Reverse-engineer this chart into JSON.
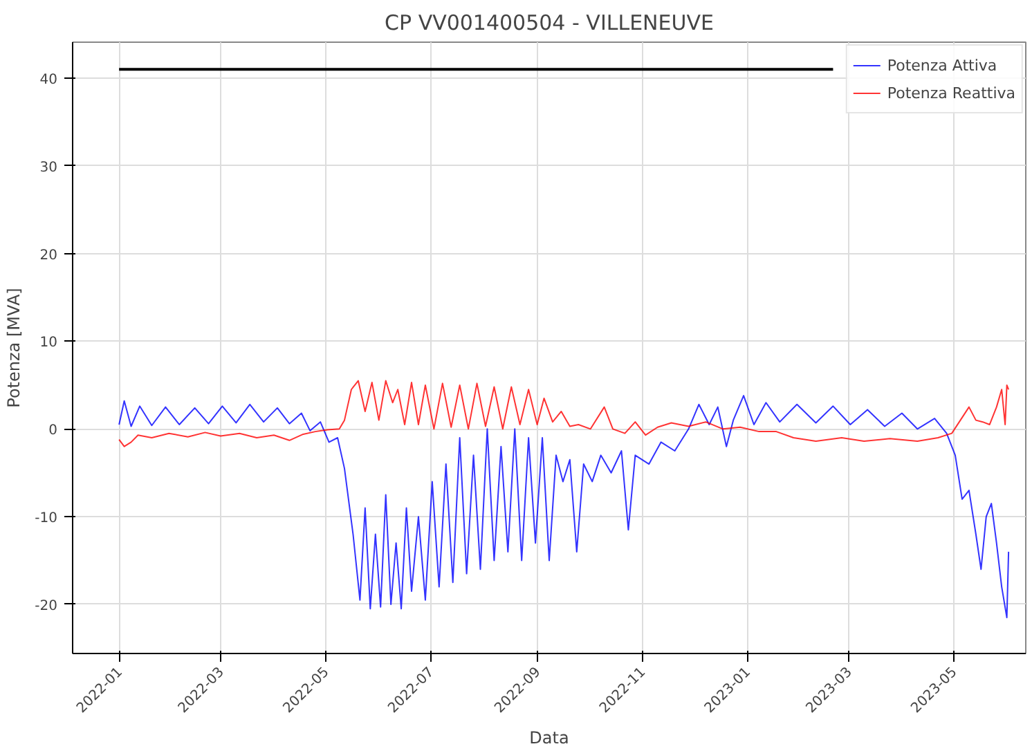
{
  "chart_data": {
    "type": "line",
    "title": "CP VV001400504 - VILLENEUVE",
    "xlabel": "Data",
    "ylabel": "Potenza [MVA]",
    "xlim": [
      "2021-12-05",
      "2023-06-12"
    ],
    "ylim": [
      -25.6,
      44.1
    ],
    "xticks": [
      "2022-01",
      "2022-03",
      "2022-05",
      "2022-07",
      "2022-09",
      "2022-11",
      "2023-01",
      "2023-03",
      "2023-05"
    ],
    "yticks": [
      -20,
      -10,
      0,
      10,
      20,
      30,
      40
    ],
    "grid": true,
    "legend": "top right",
    "line_style": "solid",
    "marker": "none",
    "series": [
      {
        "name": "Potenza Attiva",
        "color": "#0000ff",
        "x": [
          "2022-01-01",
          "2022-01-04",
          "2022-01-08",
          "2022-01-13",
          "2022-01-20",
          "2022-01-28",
          "2022-02-05",
          "2022-02-14",
          "2022-02-22",
          "2022-03-02",
          "2022-03-10",
          "2022-03-18",
          "2022-03-26",
          "2022-04-03",
          "2022-04-10",
          "2022-04-17",
          "2022-04-22",
          "2022-04-28",
          "2022-05-03",
          "2022-05-08",
          "2022-05-12",
          "2022-05-17",
          "2022-05-21",
          "2022-05-24",
          "2022-05-27",
          "2022-05-30",
          "2022-06-02",
          "2022-06-05",
          "2022-06-08",
          "2022-06-11",
          "2022-06-14",
          "2022-06-17",
          "2022-06-20",
          "2022-06-24",
          "2022-06-28",
          "2022-07-02",
          "2022-07-06",
          "2022-07-10",
          "2022-07-14",
          "2022-07-18",
          "2022-07-22",
          "2022-07-26",
          "2022-07-30",
          "2022-08-03",
          "2022-08-07",
          "2022-08-11",
          "2022-08-15",
          "2022-08-19",
          "2022-08-23",
          "2022-08-27",
          "2022-08-31",
          "2022-09-04",
          "2022-09-08",
          "2022-09-12",
          "2022-09-16",
          "2022-09-20",
          "2022-09-24",
          "2022-09-28",
          "2022-10-03",
          "2022-10-08",
          "2022-10-14",
          "2022-10-20",
          "2022-10-24",
          "2022-10-28",
          "2022-11-05",
          "2022-11-12",
          "2022-11-20",
          "2022-11-28",
          "2022-12-04",
          "2022-12-10",
          "2022-12-15",
          "2022-12-20",
          "2022-12-24",
          "2022-12-30",
          "2023-01-05",
          "2023-01-12",
          "2023-01-20",
          "2023-01-30",
          "2023-02-10",
          "2023-02-20",
          "2023-03-02",
          "2023-03-12",
          "2023-03-22",
          "2023-04-01",
          "2023-04-10",
          "2023-04-20",
          "2023-04-27",
          "2023-05-02",
          "2023-05-06",
          "2023-05-10",
          "2023-05-14",
          "2023-05-17",
          "2023-05-20",
          "2023-05-23",
          "2023-05-26",
          "2023-05-29",
          "2023-06-01",
          "2023-06-02"
        ],
        "values": [
          0.5,
          3.2,
          0.3,
          2.6,
          0.4,
          2.5,
          0.5,
          2.4,
          0.6,
          2.6,
          0.7,
          2.8,
          0.8,
          2.4,
          0.6,
          1.8,
          -0.2,
          0.8,
          -1.5,
          -1.0,
          -4.5,
          -12,
          -19.5,
          -9,
          -20.5,
          -12,
          -20.3,
          -7.5,
          -20,
          -13,
          -20.5,
          -9,
          -18.5,
          -10,
          -19.5,
          -6,
          -18,
          -4,
          -17.5,
          -1,
          -16.5,
          -3,
          -16,
          0,
          -15,
          -2,
          -14,
          0,
          -15,
          -1,
          -13,
          -1,
          -15,
          -3,
          -6,
          -3.5,
          -14,
          -4,
          -6,
          -3,
          -5,
          -2.5,
          -11.5,
          -3,
          -4,
          -1.5,
          -2.5,
          0,
          2.8,
          0.5,
          2.5,
          -2,
          1,
          3.8,
          0.5,
          3,
          0.8,
          2.8,
          0.7,
          2.6,
          0.5,
          2.2,
          0.3,
          1.8,
          0.0,
          1.2,
          -0.5,
          -3,
          -8,
          -7,
          -12,
          -16,
          -10,
          -8.5,
          -13,
          -18,
          -21.5,
          -14
        ]
      },
      {
        "name": "Potenza Reattiva",
        "color": "#ff0000",
        "x": [
          "2022-01-01",
          "2022-01-04",
          "2022-01-08",
          "2022-01-12",
          "2022-01-20",
          "2022-01-30",
          "2022-02-10",
          "2022-02-20",
          "2022-03-01",
          "2022-03-12",
          "2022-03-22",
          "2022-04-01",
          "2022-04-10",
          "2022-04-18",
          "2022-04-25",
          "2022-05-02",
          "2022-05-09",
          "2022-05-12",
          "2022-05-16",
          "2022-05-20",
          "2022-05-24",
          "2022-05-28",
          "2022-06-01",
          "2022-06-05",
          "2022-06-09",
          "2022-06-12",
          "2022-06-16",
          "2022-06-20",
          "2022-06-24",
          "2022-06-28",
          "2022-07-03",
          "2022-07-08",
          "2022-07-13",
          "2022-07-18",
          "2022-07-23",
          "2022-07-28",
          "2022-08-02",
          "2022-08-07",
          "2022-08-12",
          "2022-08-17",
          "2022-08-22",
          "2022-08-27",
          "2022-09-01",
          "2022-09-05",
          "2022-09-10",
          "2022-09-15",
          "2022-09-20",
          "2022-09-25",
          "2022-10-02",
          "2022-10-10",
          "2022-10-15",
          "2022-10-22",
          "2022-10-28",
          "2022-11-03",
          "2022-11-10",
          "2022-11-18",
          "2022-11-28",
          "2022-12-08",
          "2022-12-18",
          "2022-12-28",
          "2023-01-08",
          "2023-01-18",
          "2023-01-28",
          "2023-02-10",
          "2023-02-25",
          "2023-03-10",
          "2023-03-25",
          "2023-04-10",
          "2023-04-22",
          "2023-04-30",
          "2023-05-05",
          "2023-05-10",
          "2023-05-14",
          "2023-05-18",
          "2023-05-22",
          "2023-05-26",
          "2023-05-29",
          "2023-05-31",
          "2023-06-01",
          "2023-06-02"
        ],
        "values": [
          -1.2,
          -2.0,
          -1.5,
          -0.7,
          -1.0,
          -0.5,
          -0.9,
          -0.4,
          -0.8,
          -0.5,
          -1.0,
          -0.7,
          -1.3,
          -0.6,
          -0.3,
          -0.1,
          0,
          1,
          4.5,
          5.5,
          2,
          5.3,
          1,
          5.5,
          3,
          4.5,
          0.5,
          5.3,
          0.5,
          5.0,
          0,
          5.2,
          0.2,
          5.0,
          0,
          5.2,
          0.3,
          4.8,
          0,
          4.8,
          0.5,
          4.5,
          0.5,
          3.5,
          0.8,
          2,
          0.3,
          0.5,
          0,
          2.5,
          0,
          -0.5,
          0.8,
          -0.7,
          0.2,
          0.7,
          0.3,
          0.8,
          0,
          0.2,
          -0.3,
          -0.3,
          -1.0,
          -1.4,
          -1.0,
          -1.4,
          -1.1,
          -1.4,
          -1.0,
          -0.5,
          1,
          2.5,
          1.0,
          0.8,
          0.5,
          2.5,
          4.5,
          0.5,
          5.0,
          4.5
        ]
      },
      {
        "color": "#000000",
        "x": [
          "2022-01-01",
          "2023-02-20"
        ],
        "values": [
          41,
          41
        ]
      }
    ]
  }
}
